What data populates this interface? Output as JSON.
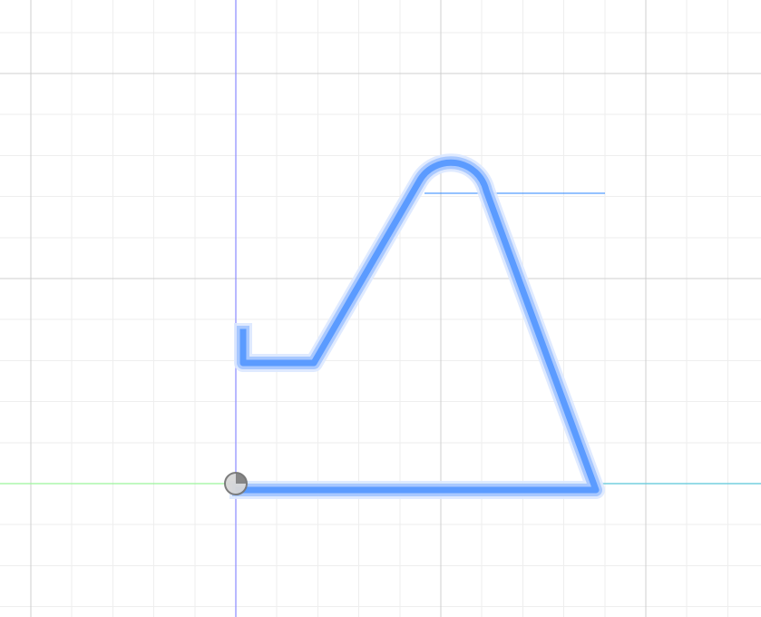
{
  "window": {
    "title": ""
  },
  "colors": {
    "background": "#ffffff",
    "grid_minor": "#eeeeee",
    "grid_major": "#cfcfcf",
    "axis_y": "#8a8aff",
    "axis_x": "#9cf59c",
    "sketch_selected": "#5b9bff",
    "sketch_halo": "#a8c8ff",
    "sketch_glow": "#dbe8ff",
    "construction_line": "#2a84ff",
    "origin_marker": "#777777",
    "origin_marker_fill": "#d7d7d7"
  },
  "icons": {
    "origin": "origin-point-icon"
  },
  "sketch": {
    "name": "sketch-profile",
    "selected": true
  }
}
